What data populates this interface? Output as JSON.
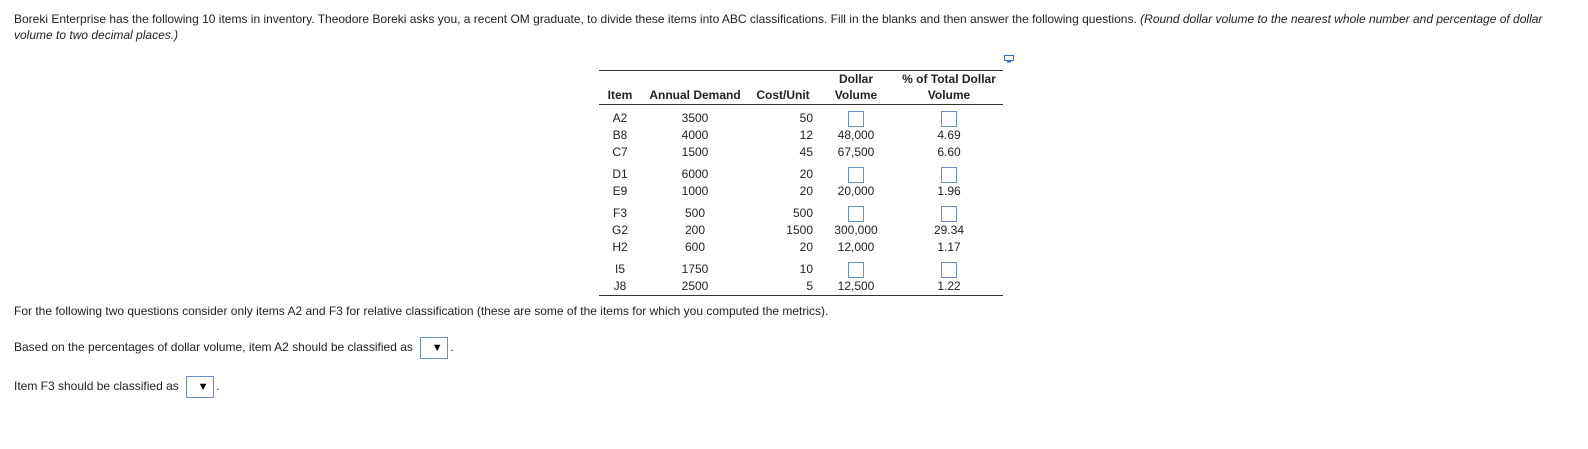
{
  "intro": {
    "text": "Boreki Enterprise has the following 10 items in inventory.  Theodore Boreki asks you, a recent OM graduate, to divide these items into ABC classifications. Fill in the blanks and then answer the following questions.",
    "note": "(Round dollar volume to the nearest whole number and percentage of dollar volume to two decimal places.)"
  },
  "table": {
    "headers": {
      "item": "Item",
      "demand": "Annual Demand",
      "cost": "Cost/Unit",
      "dv_top": "Dollar",
      "dv_bottom": "Volume",
      "pct_top": "% of Total Dollar",
      "pct_bottom": "Volume"
    },
    "rows": [
      {
        "item": "A2",
        "demand": "3500",
        "cost": "50",
        "dv": "",
        "pct": ""
      },
      {
        "item": "B8",
        "demand": "4000",
        "cost": "12",
        "dv": "48,000",
        "pct": "4.69"
      },
      {
        "item": "C7",
        "demand": "1500",
        "cost": "45",
        "dv": "67,500",
        "pct": "6.60"
      },
      {
        "item": "D1",
        "demand": "6000",
        "cost": "20",
        "dv": "",
        "pct": ""
      },
      {
        "item": "E9",
        "demand": "1000",
        "cost": "20",
        "dv": "20,000",
        "pct": "1.96"
      },
      {
        "item": "F3",
        "demand": "500",
        "cost": "500",
        "dv": "",
        "pct": ""
      },
      {
        "item": "G2",
        "demand": "200",
        "cost": "1500",
        "dv": "300,000",
        "pct": "29.34"
      },
      {
        "item": "H2",
        "demand": "600",
        "cost": "20",
        "dv": "12,000",
        "pct": "1.17"
      },
      {
        "item": "I5",
        "demand": "1750",
        "cost": "10",
        "dv": "",
        "pct": ""
      },
      {
        "item": "J8",
        "demand": "2500",
        "cost": "5",
        "dv": "12,500",
        "pct": "1.22"
      }
    ]
  },
  "question_intro": "For the following two questions consider only items A2 and F3 for relative classification (these are some of the items for which you computed the metrics).",
  "q_a2": {
    "label": "Based on the percentages of dollar volume, item A2 should be classified as",
    "selected": ""
  },
  "q_f3": {
    "label": "Item F3 should be classified as",
    "selected": ""
  },
  "icons": {
    "dropdown": "dropdown-arrow-icon",
    "copy": "copy-icon"
  }
}
